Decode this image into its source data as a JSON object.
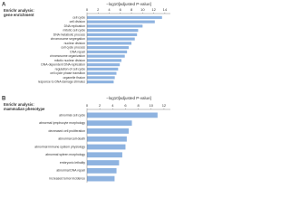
{
  "chart_data": [
    {
      "type": "bar",
      "orientation": "horizontal",
      "panel_label": "A",
      "title": [
        "Enrichr analysis:",
        "gene enrichment"
      ],
      "axis_title": "−log10[adjusted P-value]",
      "categories": [
        "cell cycle",
        "cell division",
        "DNA replication",
        "mitotic cell cycle",
        "DNA metabolic process",
        "chromosome segregation",
        "nuclear division",
        "cell cycle process",
        "DNA repair",
        "chromosome organization",
        "mitotic nuclear division",
        "DNA-dependent DNA replication",
        "regulation of cell cycle",
        "cell cycle phase transition",
        "organelle fission",
        "response to DNA damage stimulus"
      ],
      "values": [
        13.5,
        12.2,
        10.0,
        9.2,
        9.0,
        8.6,
        8.0,
        7.5,
        7.2,
        6.8,
        6.2,
        5.9,
        5.6,
        5.3,
        5.0,
        4.8
      ],
      "color": "#8eb3e0",
      "xlim": [
        0,
        15
      ],
      "xticks": [
        0,
        2,
        4,
        6,
        8,
        10,
        12,
        14
      ]
    },
    {
      "type": "bar",
      "orientation": "horizontal",
      "panel_label": "B",
      "title": [
        "Enrichr analysis:",
        "mammalian phenotype"
      ],
      "axis_title": "−log10[adjusted P-value]",
      "categories": [
        "abnormal cell cycle",
        "abnormal lymphocyte morphology",
        "decreased cell proliferation",
        "abnormal cell death",
        "abnormal immune system physiology",
        "abnormal spleen morphology",
        "embryonic lethality",
        "abnormal DNA repair",
        "increased tumor incidence"
      ],
      "values": [
        11.0,
        7.0,
        6.5,
        6.2,
        6.0,
        5.5,
        5.0,
        4.6,
        4.3
      ],
      "color": "#8eb3e0",
      "xlim": [
        0,
        13
      ],
      "xticks": [
        0,
        2,
        4,
        6,
        8,
        10,
        12
      ]
    }
  ]
}
